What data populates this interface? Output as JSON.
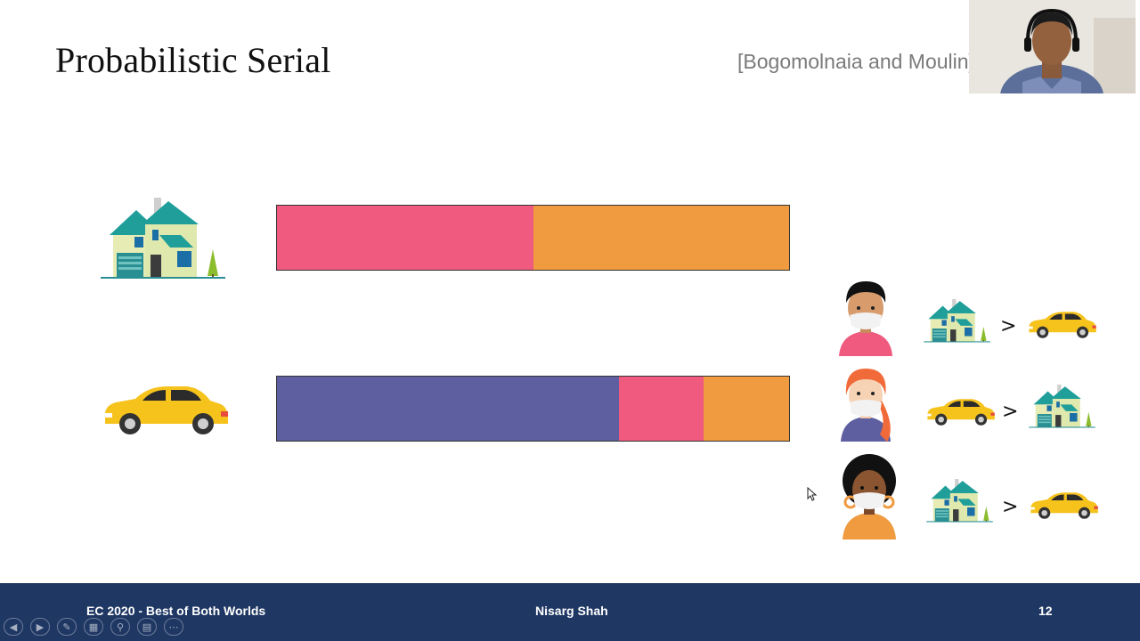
{
  "slide": {
    "title": "Probabilistic Serial",
    "citation": "[Bogomolnaia and Moulin]",
    "page_number": "12"
  },
  "items": [
    {
      "name": "house-icon",
      "segments": [
        {
          "agent": "agent-1",
          "color": "#ef5a7e",
          "fraction": 0.5
        },
        {
          "agent": "agent-3",
          "color": "#f09b40",
          "fraction": 0.5
        }
      ]
    },
    {
      "name": "car-icon",
      "segments": [
        {
          "agent": "agent-2",
          "color": "#5e5fa0",
          "fraction": 0.667
        },
        {
          "agent": "agent-1",
          "color": "#ef5a7e",
          "fraction": 0.1665
        },
        {
          "agent": "agent-3",
          "color": "#f09b40",
          "fraction": 0.1665
        }
      ]
    }
  ],
  "agents": [
    {
      "name": "agent-1",
      "shirt": "#ef5a7e",
      "preference": [
        "house-icon",
        "car-icon"
      ],
      "relation": ">"
    },
    {
      "name": "agent-2",
      "shirt": "#5e5fa0",
      "preference": [
        "car-icon",
        "house-icon"
      ],
      "relation": ">"
    },
    {
      "name": "agent-3",
      "shirt": "#f09b40",
      "preference": [
        "house-icon",
        "car-icon"
      ],
      "relation": ">"
    }
  ],
  "footer": {
    "left": "EC 2020 - Best of Both Worlds",
    "center": "Nisarg Shah",
    "right": "12"
  },
  "controls": [
    "prev-icon",
    "next-icon",
    "pen-icon",
    "slides-icon",
    "zoom-icon",
    "subtitles-icon",
    "more-icon"
  ],
  "colors": {
    "footer_bg": "#1f3763",
    "pink": "#ef5a7e",
    "orange": "#f09b40",
    "purple": "#5e5fa0"
  }
}
